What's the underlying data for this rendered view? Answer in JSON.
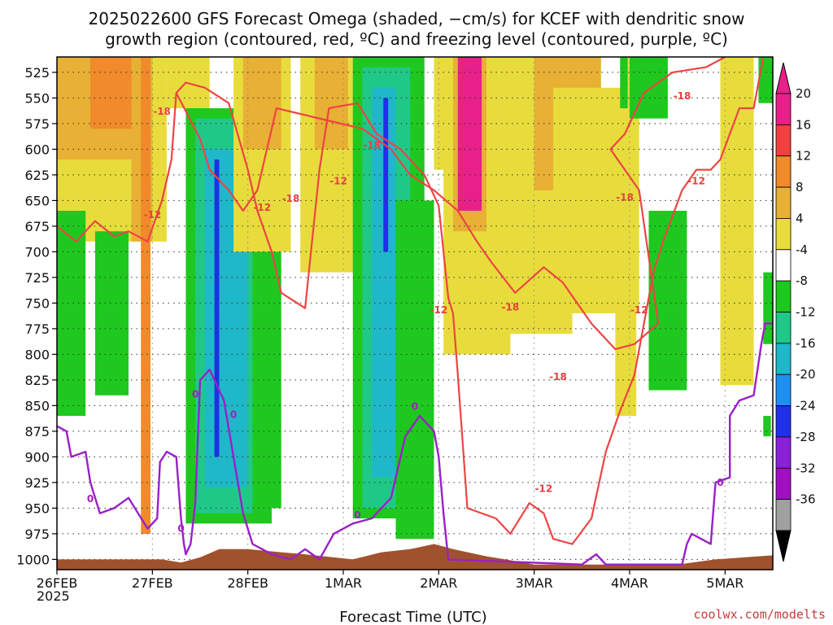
{
  "title_line1": "2025022600 GFS Forecast Omega (shaded, −cm/s) for KCEF with dendritic snow",
  "title_line2": "growth region (contoured, red, ºC) and freezing level (contoured, purple, ºC)",
  "credit": "coolwx.com/modelts",
  "chart_data": {
    "type": "heatmap",
    "xlabel": "Forecast Time (UTC)",
    "x_ticks": [
      "26FEB",
      "27FEB",
      "28FEB",
      "1MAR",
      "2MAR",
      "3MAR",
      "4MAR",
      "5MAR"
    ],
    "x_year_label": "2025",
    "xlim_days": [
      0,
      7.5
    ],
    "y_ticks": [
      525,
      550,
      575,
      600,
      625,
      650,
      675,
      700,
      725,
      750,
      775,
      800,
      825,
      850,
      875,
      900,
      925,
      950,
      975,
      1000
    ],
    "ylim": [
      1010,
      510
    ],
    "colorbar": {
      "labels": [
        "20",
        "16",
        "12",
        "8",
        "4",
        "-4",
        "-8",
        "-12",
        "-16",
        "-20",
        "-24",
        "-28",
        "-32",
        "-36"
      ],
      "bins": [
        {
          "from": 20,
          "to": 24,
          "color": "#e8208a"
        },
        {
          "from": 16,
          "to": 20,
          "color": "#f04040"
        },
        {
          "from": 12,
          "to": 16,
          "color": "#f08a2a"
        },
        {
          "from": 8,
          "to": 12,
          "color": "#e8b034"
        },
        {
          "from": 4,
          "to": 8,
          "color": "#e8dc3c"
        },
        {
          "from": -4,
          "to": 4,
          "color": "#ffffff"
        },
        {
          "from": -8,
          "to": -4,
          "color": "#1ec81e"
        },
        {
          "from": -12,
          "to": -8,
          "color": "#20c888"
        },
        {
          "from": -16,
          "to": -12,
          "color": "#1eb8c8"
        },
        {
          "from": -20,
          "to": -16,
          "color": "#2090f0"
        },
        {
          "from": -24,
          "to": -20,
          "color": "#2030e8"
        },
        {
          "from": -28,
          "to": -24,
          "color": "#8a20d8"
        },
        {
          "from": -32,
          "to": -28,
          "color": "#a010c0"
        },
        {
          "from": -36,
          "to": -32,
          "color": "#a0a0a0"
        }
      ]
    },
    "shading_colors": {
      "yellow": "#e8dc3c",
      "gold": "#e8b034",
      "orange": "#f08a2a",
      "pink": "#e8208a",
      "green": "#1ec81e",
      "teal": "#20c888",
      "cyan": "#1eb8c8",
      "blue": "#2030e8",
      "terrain": "#a0522d"
    },
    "omega_regions": [
      {
        "t": 0.0,
        "w": 1.15,
        "top": 510,
        "bot": 690,
        "color": "yellow"
      },
      {
        "t": 0.0,
        "w": 0.9,
        "top": 510,
        "bot": 610,
        "color": "gold"
      },
      {
        "t": 0.35,
        "w": 0.45,
        "top": 510,
        "bot": 580,
        "color": "orange"
      },
      {
        "t": 0.78,
        "w": 0.22,
        "top": 510,
        "bot": 690,
        "color": "gold"
      },
      {
        "t": 0.88,
        "w": 0.1,
        "top": 510,
        "bot": 975,
        "color": "orange"
      },
      {
        "t": 0.0,
        "w": 0.3,
        "top": 660,
        "bot": 860,
        "color": "green"
      },
      {
        "t": 0.4,
        "w": 0.35,
        "top": 680,
        "bot": 840,
        "color": "green"
      },
      {
        "t": 1.35,
        "w": 0.9,
        "top": 560,
        "bot": 965,
        "color": "green"
      },
      {
        "t": 1.45,
        "w": 0.6,
        "top": 570,
        "bot": 955,
        "color": "teal"
      },
      {
        "t": 1.55,
        "w": 0.45,
        "top": 600,
        "bot": 930,
        "color": "cyan"
      },
      {
        "t": 1.65,
        "w": 0.05,
        "top": 610,
        "bot": 900,
        "color": "blue"
      },
      {
        "t": 1.15,
        "w": 0.45,
        "top": 510,
        "bot": 560,
        "color": "yellow"
      },
      {
        "t": 1.85,
        "w": 0.6,
        "top": 510,
        "bot": 700,
        "color": "yellow"
      },
      {
        "t": 1.95,
        "w": 0.4,
        "top": 510,
        "bot": 600,
        "color": "gold"
      },
      {
        "t": 2.1,
        "w": 0.25,
        "top": 700,
        "bot": 950,
        "color": "green"
      },
      {
        "t": 2.55,
        "w": 1.0,
        "top": 510,
        "bot": 720,
        "color": "yellow"
      },
      {
        "t": 2.7,
        "w": 0.35,
        "top": 510,
        "bot": 600,
        "color": "gold"
      },
      {
        "t": 3.1,
        "w": 0.75,
        "top": 510,
        "bot": 960,
        "color": "green"
      },
      {
        "t": 3.2,
        "w": 0.5,
        "top": 520,
        "bot": 950,
        "color": "teal"
      },
      {
        "t": 3.3,
        "w": 0.25,
        "top": 540,
        "bot": 920,
        "color": "cyan"
      },
      {
        "t": 3.42,
        "w": 0.05,
        "top": 550,
        "bot": 700,
        "color": "blue"
      },
      {
        "t": 3.55,
        "w": 0.4,
        "top": 650,
        "bot": 980,
        "color": "green"
      },
      {
        "t": 3.95,
        "w": 0.2,
        "top": 510,
        "bot": 620,
        "color": "yellow"
      },
      {
        "t": 4.05,
        "w": 0.7,
        "top": 510,
        "bot": 800,
        "color": "yellow"
      },
      {
        "t": 4.15,
        "w": 0.35,
        "top": 510,
        "bot": 680,
        "color": "gold"
      },
      {
        "t": 4.2,
        "w": 0.25,
        "top": 510,
        "bot": 660,
        "color": "pink"
      },
      {
        "t": 4.6,
        "w": 0.8,
        "top": 510,
        "bot": 780,
        "color": "yellow"
      },
      {
        "t": 5.0,
        "w": 0.7,
        "top": 510,
        "bot": 640,
        "color": "gold"
      },
      {
        "t": 5.2,
        "w": 0.9,
        "top": 540,
        "bot": 760,
        "color": "yellow"
      },
      {
        "t": 5.95,
        "w": 0.12,
        "top": 510,
        "bot": 860,
        "color": "yellow"
      },
      {
        "t": 6.0,
        "w": 0.4,
        "top": 510,
        "bot": 570,
        "color": "green"
      },
      {
        "t": 5.9,
        "w": 0.08,
        "top": 510,
        "bot": 560,
        "color": "green"
      },
      {
        "t": 5.85,
        "w": 0.12,
        "top": 730,
        "bot": 860,
        "color": "yellow"
      },
      {
        "t": 6.2,
        "w": 0.4,
        "top": 660,
        "bot": 835,
        "color": "green"
      },
      {
        "t": 6.95,
        "w": 0.35,
        "top": 510,
        "bot": 830,
        "color": "yellow"
      },
      {
        "t": 7.35,
        "w": 0.15,
        "top": 510,
        "bot": 555,
        "color": "green"
      },
      {
        "t": 7.4,
        "w": 0.1,
        "top": 720,
        "bot": 790,
        "color": "green"
      },
      {
        "t": 7.4,
        "w": 0.08,
        "top": 860,
        "bot": 880,
        "color": "green"
      }
    ],
    "freezing_level_0C": [
      [
        0.0,
        870
      ],
      [
        0.1,
        875
      ],
      [
        0.15,
        900
      ],
      [
        0.3,
        895
      ],
      [
        0.35,
        925
      ],
      [
        0.45,
        955
      ],
      [
        0.6,
        950
      ],
      [
        0.75,
        940
      ],
      [
        0.95,
        970
      ],
      [
        1.05,
        960
      ],
      [
        1.08,
        905
      ],
      [
        1.15,
        895
      ],
      [
        1.25,
        900
      ],
      [
        1.3,
        960
      ],
      [
        1.33,
        985
      ],
      [
        1.35,
        995
      ],
      [
        1.4,
        985
      ],
      [
        1.45,
        945
      ],
      [
        1.5,
        825
      ],
      [
        1.6,
        815
      ],
      [
        1.75,
        845
      ],
      [
        1.95,
        955
      ],
      [
        2.05,
        985
      ],
      [
        2.25,
        995
      ],
      [
        2.45,
        1000
      ],
      [
        2.6,
        990
      ],
      [
        2.75,
        1000
      ],
      [
        2.9,
        975
      ],
      [
        3.1,
        965
      ],
      [
        3.3,
        960
      ],
      [
        3.5,
        940
      ],
      [
        3.65,
        880
      ],
      [
        3.8,
        860
      ],
      [
        3.95,
        875
      ],
      [
        4.0,
        900
      ],
      [
        4.05,
        955
      ],
      [
        4.1,
        1000
      ],
      [
        5.5,
        1005
      ],
      [
        5.65,
        995
      ],
      [
        5.75,
        1005
      ],
      [
        6.55,
        1005
      ],
      [
        6.6,
        985
      ],
      [
        6.65,
        975
      ],
      [
        6.75,
        980
      ],
      [
        6.85,
        985
      ],
      [
        6.9,
        925
      ],
      [
        7.05,
        920
      ],
      [
        7.05,
        860
      ],
      [
        7.15,
        845
      ],
      [
        7.3,
        840
      ],
      [
        7.38,
        790
      ],
      [
        7.42,
        770
      ],
      [
        7.5,
        770
      ]
    ],
    "contours_minus12C": [
      [
        0.0,
        675
      ],
      [
        0.2,
        690
      ],
      [
        0.4,
        670
      ],
      [
        0.6,
        685
      ],
      [
        0.75,
        680
      ],
      [
        0.95,
        690
      ],
      [
        1.1,
        650
      ],
      [
        1.2,
        610
      ],
      [
        1.25,
        545
      ],
      [
        1.35,
        535
      ],
      [
        1.55,
        540
      ],
      [
        1.8,
        555
      ],
      [
        2.0,
        620
      ],
      [
        2.1,
        660
      ],
      [
        2.25,
        700
      ],
      [
        2.35,
        740
      ],
      [
        2.6,
        755
      ],
      [
        2.75,
        620
      ],
      [
        2.85,
        560
      ],
      [
        3.15,
        555
      ],
      [
        3.35,
        585
      ],
      [
        3.6,
        600
      ],
      [
        3.85,
        625
      ],
      [
        4.0,
        655
      ],
      [
        4.05,
        700
      ],
      [
        4.1,
        745
      ],
      [
        4.15,
        760
      ],
      [
        4.2,
        820
      ],
      [
        4.3,
        950
      ],
      [
        4.6,
        960
      ],
      [
        4.75,
        975
      ],
      [
        4.95,
        945
      ],
      [
        5.1,
        955
      ],
      [
        5.2,
        980
      ],
      [
        5.4,
        985
      ],
      [
        5.6,
        960
      ],
      [
        5.75,
        895
      ],
      [
        5.9,
        855
      ],
      [
        6.05,
        820
      ],
      [
        6.25,
        720
      ],
      [
        6.35,
        690
      ],
      [
        6.55,
        640
      ],
      [
        6.7,
        620
      ],
      [
        6.85,
        620
      ],
      [
        6.95,
        610
      ],
      [
        7.15,
        560
      ],
      [
        7.3,
        560
      ],
      [
        7.4,
        510
      ]
    ],
    "contours_minus18C": [
      [
        1.25,
        545
      ],
      [
        1.5,
        590
      ],
      [
        1.6,
        620
      ],
      [
        1.8,
        640
      ],
      [
        1.95,
        660
      ],
      [
        2.1,
        640
      ],
      [
        2.2,
        600
      ],
      [
        2.3,
        560
      ],
      [
        3.2,
        580
      ],
      [
        3.5,
        600
      ],
      [
        3.7,
        625
      ],
      [
        3.95,
        640
      ],
      [
        4.2,
        660
      ],
      [
        4.4,
        690
      ],
      [
        4.55,
        710
      ],
      [
        4.8,
        740
      ],
      [
        5.1,
        715
      ],
      [
        5.3,
        730
      ],
      [
        5.6,
        770
      ],
      [
        5.85,
        795
      ],
      [
        6.05,
        790
      ],
      [
        6.3,
        770
      ],
      [
        6.1,
        640
      ],
      [
        5.95,
        620
      ],
      [
        5.8,
        600
      ],
      [
        5.95,
        585
      ],
      [
        6.15,
        545
      ],
      [
        6.45,
        525
      ],
      [
        6.8,
        520
      ],
      [
        7.0,
        510
      ]
    ],
    "contour_labels": [
      {
        "text": "-18",
        "t": 1.1,
        "p": 563,
        "color": "#e84040"
      },
      {
        "text": "-12",
        "t": 1.0,
        "p": 664,
        "color": "#e84040"
      },
      {
        "text": "-12",
        "t": 2.15,
        "p": 657,
        "color": "#e84040"
      },
      {
        "text": "-18",
        "t": 2.45,
        "p": 648,
        "color": "#e84040"
      },
      {
        "text": "-12",
        "t": 2.95,
        "p": 631,
        "color": "#e84040"
      },
      {
        "text": "-18",
        "t": 3.3,
        "p": 596,
        "color": "#e84040"
      },
      {
        "text": "-12",
        "t": 4.0,
        "p": 757,
        "color": "#e84040"
      },
      {
        "text": "-18",
        "t": 4.75,
        "p": 754,
        "color": "#e84040"
      },
      {
        "text": "-18",
        "t": 5.25,
        "p": 822,
        "color": "#e84040"
      },
      {
        "text": "-18",
        "t": 5.95,
        "p": 647,
        "color": "#e84040"
      },
      {
        "text": "-12",
        "t": 6.1,
        "p": 757,
        "color": "#e84040"
      },
      {
        "text": "-12",
        "t": 5.1,
        "p": 931,
        "color": "#e84040"
      },
      {
        "text": "-18",
        "t": 6.55,
        "p": 548,
        "color": "#e84040"
      },
      {
        "text": "-12",
        "t": 6.7,
        "p": 631,
        "color": "#e84040"
      },
      {
        "text": "0",
        "t": 0.35,
        "p": 941,
        "color": "#a020c0"
      },
      {
        "text": "0",
        "t": 1.3,
        "p": 970,
        "color": "#a020c0"
      },
      {
        "text": "0",
        "t": 1.45,
        "p": 839,
        "color": "#a020c0"
      },
      {
        "text": "0",
        "t": 1.85,
        "p": 859,
        "color": "#a020c0"
      },
      {
        "text": "0",
        "t": 3.15,
        "p": 957,
        "color": "#a020c0"
      },
      {
        "text": "0",
        "t": 3.75,
        "p": 851,
        "color": "#a020c0"
      },
      {
        "text": "0",
        "t": 6.95,
        "p": 925,
        "color": "#a020c0"
      }
    ],
    "terrain_top": [
      [
        0.0,
        1000
      ],
      [
        1.1,
        1000
      ],
      [
        1.3,
        1003
      ],
      [
        1.5,
        998
      ],
      [
        1.7,
        990
      ],
      [
        2.0,
        990
      ],
      [
        2.35,
        993
      ],
      [
        2.6,
        995
      ],
      [
        2.9,
        998
      ],
      [
        3.1,
        1000
      ],
      [
        3.4,
        993
      ],
      [
        3.7,
        990
      ],
      [
        3.95,
        985
      ],
      [
        4.15,
        990
      ],
      [
        4.5,
        997
      ],
      [
        4.7,
        1000
      ],
      [
        5.0,
        1005
      ],
      [
        6.5,
        1005
      ],
      [
        6.9,
        1000
      ],
      [
        7.2,
        998
      ],
      [
        7.5,
        996
      ]
    ]
  }
}
